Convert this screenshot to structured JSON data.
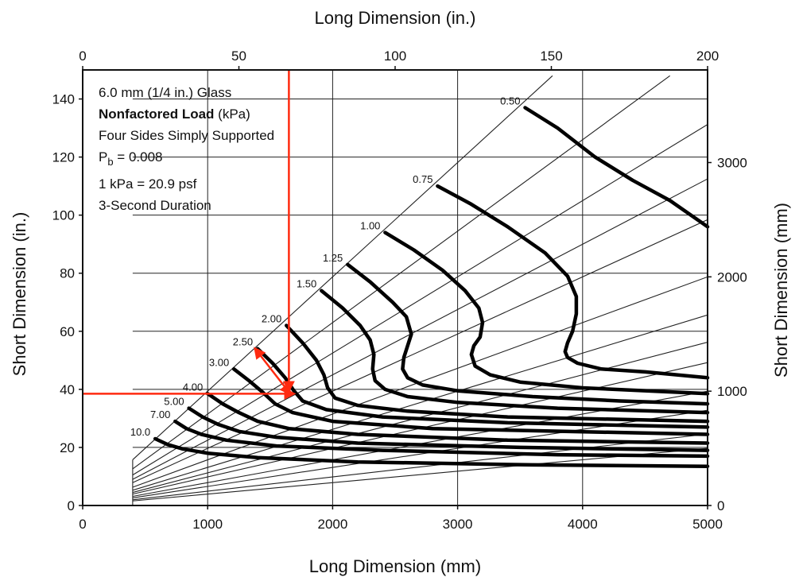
{
  "chart_data": {
    "type": "line",
    "title": "",
    "info": {
      "line1": "6.0 mm (1/4 in.) Glass",
      "line2_bold": "Nonfactored Load",
      "line2_rest": " (kPa)",
      "line3": "Four Sides Simply Supported",
      "line4_base": "P",
      "line4_sub": "b",
      "line4_rest": " = 0.008",
      "line5": "1 kPa = 20.9 psf",
      "line6": "3-Second Duration"
    },
    "axes": {
      "bottom": {
        "label": "Long Dimension (mm)",
        "range": [
          0,
          5000
        ],
        "ticks": [
          "0",
          "1000",
          "2000",
          "3000",
          "4000",
          "5000"
        ]
      },
      "top": {
        "label": "Long Dimension (in.)",
        "range": [
          0,
          200
        ],
        "ticks": [
          "0",
          "50",
          "100",
          "150",
          "200"
        ]
      },
      "left": {
        "label": "Short Dimension (in.)",
        "range": [
          0,
          150
        ],
        "ticks": [
          "0",
          "20",
          "40",
          "60",
          "80",
          "100",
          "120",
          "140"
        ]
      },
      "right": {
        "label": "Short Dimension (mm)",
        "range": [
          0,
          3810
        ],
        "ticks": [
          "0",
          "1000",
          "2000",
          "3000"
        ]
      }
    },
    "grid": true,
    "grid_x_mm": [
      1000,
      2000,
      3000,
      4000,
      5000
    ],
    "grid_y_in": [
      20,
      40,
      60,
      80,
      100,
      120,
      140
    ],
    "aspect_ratio_lines": [
      1,
      1.25,
      1.5,
      1.75,
      2,
      2.5,
      3,
      3.5,
      4,
      5,
      6,
      8,
      10
    ],
    "contours": [
      {
        "label": "0.50",
        "points": [
          [
            3540,
            137
          ],
          [
            3800,
            130
          ],
          [
            4100,
            120
          ],
          [
            4400,
            112
          ],
          [
            4700,
            105
          ],
          [
            5000,
            96
          ]
        ]
      },
      {
        "label": "0.75",
        "points": [
          [
            2840,
            110
          ],
          [
            3100,
            104
          ],
          [
            3400,
            96
          ],
          [
            3700,
            87
          ],
          [
            3880,
            79
          ],
          [
            3950,
            72
          ],
          [
            3950,
            66
          ],
          [
            3920,
            60
          ],
          [
            3880,
            56
          ],
          [
            3860,
            53
          ],
          [
            3880,
            51
          ],
          [
            3960,
            49
          ],
          [
            4150,
            47
          ],
          [
            4500,
            46
          ],
          [
            5000,
            44
          ]
        ]
      },
      {
        "label": "1.00",
        "points": [
          [
            2420,
            94
          ],
          [
            2650,
            88
          ],
          [
            2880,
            81
          ],
          [
            3060,
            74
          ],
          [
            3170,
            68
          ],
          [
            3200,
            63
          ],
          [
            3180,
            58
          ],
          [
            3130,
            55
          ],
          [
            3110,
            52
          ],
          [
            3140,
            48
          ],
          [
            3260,
            45
          ],
          [
            3500,
            42.5
          ],
          [
            4000,
            40.5
          ],
          [
            5000,
            38.5
          ]
        ]
      },
      {
        "label": "1.25",
        "points": [
          [
            2120,
            83
          ],
          [
            2300,
            77
          ],
          [
            2480,
            70
          ],
          [
            2590,
            65
          ],
          [
            2630,
            59
          ],
          [
            2600,
            55
          ],
          [
            2570,
            51
          ],
          [
            2560,
            47
          ],
          [
            2600,
            44
          ],
          [
            2720,
            41.5
          ],
          [
            3000,
            39.5
          ],
          [
            3600,
            37.5
          ],
          [
            4300,
            36
          ],
          [
            5000,
            35
          ]
        ]
      },
      {
        "label": "1.50",
        "points": [
          [
            1910,
            74
          ],
          [
            2080,
            68
          ],
          [
            2220,
            62
          ],
          [
            2300,
            57
          ],
          [
            2330,
            52
          ],
          [
            2320,
            47
          ],
          [
            2340,
            43
          ],
          [
            2420,
            40
          ],
          [
            2600,
            37.5
          ],
          [
            3000,
            35.5
          ],
          [
            3800,
            33.5
          ],
          [
            5000,
            32
          ]
        ]
      },
      {
        "label": "2.00",
        "points": [
          [
            1630,
            62
          ],
          [
            1760,
            56
          ],
          [
            1870,
            50
          ],
          [
            1930,
            45
          ],
          [
            1960,
            40.5
          ],
          [
            2020,
            37
          ],
          [
            2200,
            34.5
          ],
          [
            2600,
            32.5
          ],
          [
            3400,
            30.5
          ],
          [
            5000,
            29
          ]
        ]
      },
      {
        "label": "2.50",
        "points": [
          [
            1400,
            54
          ],
          [
            1520,
            49
          ],
          [
            1620,
            44
          ],
          [
            1690,
            39.5
          ],
          [
            1760,
            36
          ],
          [
            1950,
            33
          ],
          [
            2400,
            30.5
          ],
          [
            3400,
            28.5
          ],
          [
            5000,
            27
          ]
        ]
      },
      {
        "label": "3.00",
        "points": [
          [
            1210,
            47
          ],
          [
            1330,
            43
          ],
          [
            1440,
            39
          ],
          [
            1540,
            35
          ],
          [
            1680,
            32
          ],
          [
            2000,
            29
          ],
          [
            2800,
            26.5
          ],
          [
            5000,
            24.5
          ]
        ]
      },
      {
        "label": "4.00",
        "points": [
          [
            1000,
            38.5
          ],
          [
            1120,
            35
          ],
          [
            1250,
            32
          ],
          [
            1400,
            29
          ],
          [
            1650,
            26.5
          ],
          [
            2200,
            24.5
          ],
          [
            3400,
            22.5
          ],
          [
            5000,
            21.5
          ]
        ]
      },
      {
        "label": "5.00",
        "points": [
          [
            850,
            33.5
          ],
          [
            960,
            30.5
          ],
          [
            1080,
            28
          ],
          [
            1250,
            25.5
          ],
          [
            1550,
            23.5
          ],
          [
            2200,
            21.5
          ],
          [
            3500,
            20
          ],
          [
            5000,
            19
          ]
        ]
      },
      {
        "label": "7.00",
        "points": [
          [
            740,
            29
          ],
          [
            830,
            26.5
          ],
          [
            950,
            24.5
          ],
          [
            1150,
            22.5
          ],
          [
            1550,
            20.5
          ],
          [
            2400,
            19
          ],
          [
            3800,
            17.5
          ],
          [
            5000,
            17
          ]
        ]
      },
      {
        "label": "10.0",
        "points": [
          [
            580,
            23
          ],
          [
            680,
            21
          ],
          [
            800,
            19.5
          ],
          [
            1000,
            18
          ],
          [
            1400,
            16.5
          ],
          [
            2200,
            15
          ],
          [
            3600,
            14
          ],
          [
            5000,
            13.5
          ]
        ]
      }
    ],
    "annotation": {
      "color": "#ff2a10",
      "vertical_mm": 1650,
      "horizontal_in": 38.5,
      "arrow_from": [
        1380,
        54
      ],
      "arrow_to": [
        1660,
        38.5
      ]
    }
  }
}
